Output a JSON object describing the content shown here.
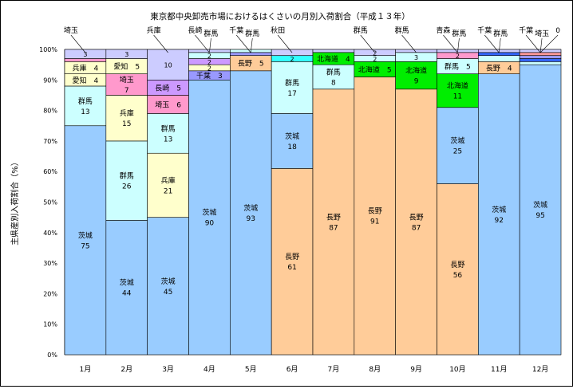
{
  "chart_data": {
    "type": "bar",
    "stacked": true,
    "title": "東京都中央卸売市場におけるはくさいの月別入荷割合（平成１３年）",
    "xlabel": "",
    "ylabel": "主県産別入荷割合（%）",
    "ylim": [
      0,
      100
    ],
    "ytick_step": 10,
    "grid": true,
    "categories": [
      "1月",
      "2月",
      "3月",
      "4月",
      "5月",
      "6月",
      "7月",
      "8月",
      "9月",
      "10月",
      "11月",
      "12月"
    ],
    "colors": {
      "茨城": "#99ccff",
      "長野": "#ffcc99",
      "群馬": "#ccffff",
      "北海道": "#00ee00",
      "兵庫": "#ffffcc",
      "愛知": "#ffffcc",
      "埼玉": "#ff99cc",
      "長崎": "#cc99ff",
      "千葉": "#9999ff",
      "秋田": "#33ffff",
      "青森": "#ff99cc",
      "その他": "#ccccff",
      "千葉B": "#3366ff",
      "埼玉B": "#ff9999"
    },
    "stacks": [
      [
        {
          "name": "茨城",
          "value": 75,
          "label": "茨城"
        },
        {
          "name": "群馬",
          "value": 13,
          "label": "群馬"
        },
        {
          "name": "愛知",
          "value": 4,
          "label": "愛知"
        },
        {
          "name": "兵庫",
          "value": 4,
          "label": "兵庫"
        },
        {
          "name": "埼玉",
          "value": 1
        },
        {
          "name": "その他",
          "value": 3,
          "label_value": "3"
        }
      ],
      [
        {
          "name": "茨城",
          "value": 44,
          "label": "茨城"
        },
        {
          "name": "群馬",
          "value": 26,
          "label": "群馬"
        },
        {
          "name": "兵庫",
          "value": 15,
          "label": "兵庫"
        },
        {
          "name": "埼玉",
          "value": 7,
          "label": "埼玉"
        },
        {
          "name": "愛知",
          "value": 5,
          "label": "愛知"
        },
        {
          "name": "その他",
          "value": 3,
          "label_value": "3"
        }
      ],
      [
        {
          "name": "茨城",
          "value": 45,
          "label": "茨城"
        },
        {
          "name": "兵庫",
          "value": 21,
          "label": "兵庫"
        },
        {
          "name": "群馬",
          "value": 13,
          "label": "群馬"
        },
        {
          "name": "埼玉",
          "value": 6,
          "label": "埼玉"
        },
        {
          "name": "長崎",
          "value": 5,
          "label": "長崎"
        },
        {
          "name": "その他",
          "value": 10,
          "label_value": "10"
        }
      ],
      [
        {
          "name": "茨城",
          "value": 90,
          "label": "茨城"
        },
        {
          "name": "千葉",
          "value": 3,
          "label": "千葉"
        },
        {
          "name": "兵庫",
          "value": 2,
          "label_value": "2"
        },
        {
          "name": "長崎",
          "value": 2,
          "label_value": "2"
        },
        {
          "name": "群馬",
          "value": 2,
          "label_value": "2"
        },
        {
          "name": "その他",
          "value": 1
        }
      ],
      [
        {
          "name": "茨城",
          "value": 93,
          "label": "茨城"
        },
        {
          "name": "長野",
          "value": 5,
          "label": "長野"
        },
        {
          "name": "千葉",
          "value": 1
        },
        {
          "name": "群馬",
          "value": 1
        }
      ],
      [
        {
          "name": "長野",
          "value": 61,
          "label": "長野"
        },
        {
          "name": "茨城",
          "value": 18,
          "label": "茨城"
        },
        {
          "name": "群馬",
          "value": 17,
          "label": "群馬"
        },
        {
          "name": "秋田",
          "value": 2,
          "label_value": "2"
        },
        {
          "name": "その他",
          "value": 2
        }
      ],
      [
        {
          "name": "長野",
          "value": 87,
          "label": "長野"
        },
        {
          "name": "群馬",
          "value": 8,
          "label": "群馬"
        },
        {
          "name": "北海道",
          "value": 4,
          "label": "北海道"
        },
        {
          "name": "その他",
          "value": 1
        }
      ],
      [
        {
          "name": "長野",
          "value": 91,
          "label": "長野"
        },
        {
          "name": "北海道",
          "value": 5,
          "label": "北海道"
        },
        {
          "name": "群馬",
          "value": 2,
          "label_value": "2"
        },
        {
          "name": "その他",
          "value": 2,
          "label_value": "2"
        }
      ],
      [
        {
          "name": "長野",
          "value": 87,
          "label": "長野"
        },
        {
          "name": "北海道",
          "value": 9,
          "label": "北海道"
        },
        {
          "name": "群馬",
          "value": 3,
          "label_value": "3"
        },
        {
          "name": "その他",
          "value": 1
        }
      ],
      [
        {
          "name": "長野",
          "value": 56,
          "label": "長野"
        },
        {
          "name": "茨城",
          "value": 25,
          "label": "茨城"
        },
        {
          "name": "北海道",
          "value": 11,
          "label": "北海道"
        },
        {
          "name": "群馬",
          "value": 5,
          "label": "群馬"
        },
        {
          "name": "青森",
          "value": 2,
          "label_value": "2"
        },
        {
          "name": "その他",
          "value": 1
        }
      ],
      [
        {
          "name": "茨城",
          "value": 92,
          "label": "茨城"
        },
        {
          "name": "長野",
          "value": 4,
          "label": "長野"
        },
        {
          "name": "群馬",
          "value": 2
        },
        {
          "name": "千葉B",
          "value": 1
        },
        {
          "name": "その他",
          "value": 1
        }
      ],
      [
        {
          "name": "茨城",
          "value": 95,
          "label": "茨城"
        },
        {
          "name": "群馬",
          "value": 1
        },
        {
          "name": "千葉B",
          "value": 1
        },
        {
          "name": "千葉",
          "value": 1
        },
        {
          "name": "埼玉B",
          "value": 1
        },
        {
          "name": "その他",
          "value": 1
        }
      ]
    ],
    "callouts": [
      {
        "text": "埼玉",
        "month": 0
      },
      {
        "text": "兵庫",
        "month": 2
      },
      {
        "text": "長崎",
        "month": 3
      },
      {
        "text": "群馬",
        "month": 3
      },
      {
        "text": "千葉",
        "month": 4
      },
      {
        "text": "群馬",
        "month": 4
      },
      {
        "text": "秋田",
        "month": 5
      },
      {
        "text": "群馬",
        "month": 7
      },
      {
        "text": "群馬",
        "month": 8
      },
      {
        "text": "青森",
        "month": 9
      },
      {
        "text": "群馬",
        "month": 9
      },
      {
        "text": "千葉",
        "month": 10
      },
      {
        "text": "群馬",
        "month": 10
      },
      {
        "text": "千葉",
        "month": 11
      },
      {
        "text": "埼玉",
        "month": 11
      },
      {
        "text": "0",
        "month": 11
      }
    ]
  }
}
